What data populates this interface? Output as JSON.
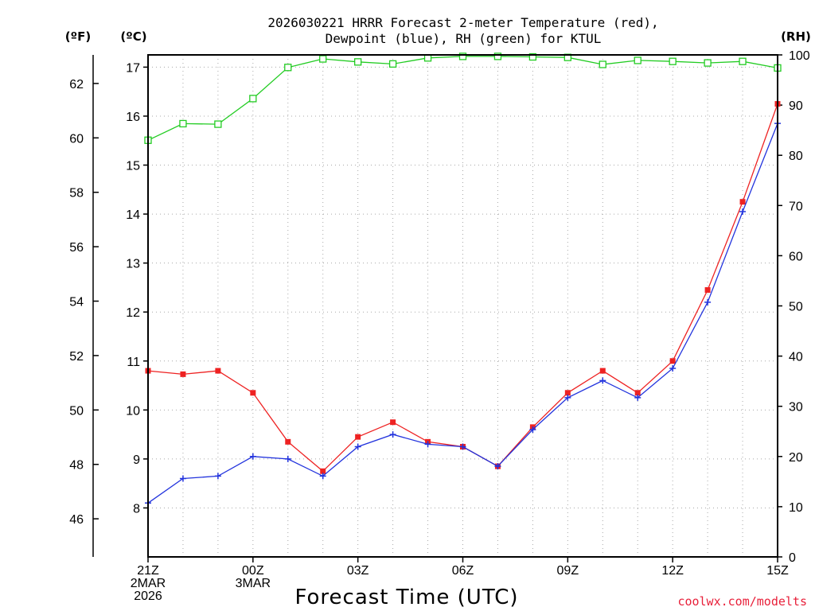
{
  "chart_data": {
    "type": "line",
    "title_line1": "2026030221 HRRR Forecast 2-meter Temperature (red),",
    "title_line2": "Dewpoint (blue), RH (green) for KTUL",
    "xlabel": "Forecast Time (UTC)",
    "credit": "coolwx.com/modelts",
    "unit_labels": {
      "fahrenheit": "(ºF)",
      "celsius": "(ºC)",
      "rh": "(RH)"
    },
    "x_hours": [
      0,
      1,
      2,
      3,
      4,
      5,
      6,
      7,
      8,
      9,
      10,
      11,
      12,
      13,
      14,
      15,
      16,
      17,
      18
    ],
    "x_ticks": [
      {
        "hour": 0,
        "lines": [
          "21Z",
          "2MAR",
          "2026"
        ]
      },
      {
        "hour": 3,
        "lines": [
          "00Z",
          "3MAR"
        ]
      },
      {
        "hour": 6,
        "lines": [
          "03Z"
        ]
      },
      {
        "hour": 9,
        "lines": [
          "06Z"
        ]
      },
      {
        "hour": 12,
        "lines": [
          "09Z"
        ]
      },
      {
        "hour": 15,
        "lines": [
          "12Z"
        ]
      },
      {
        "hour": 18,
        "lines": [
          "15Z"
        ]
      }
    ],
    "celsius_axis": {
      "range": [
        7.0,
        17.25
      ],
      "ticks": [
        "8",
        "9",
        "10",
        "11",
        "12",
        "13",
        "14",
        "15",
        "16",
        "17"
      ]
    },
    "fahrenheit_axis": {
      "ticks": [
        "46",
        "48",
        "50",
        "52",
        "54",
        "56",
        "58",
        "60",
        "62"
      ]
    },
    "rh_axis": {
      "range": [
        0,
        100
      ],
      "ticks": [
        "0",
        "10",
        "20",
        "30",
        "40",
        "50",
        "60",
        "70",
        "80",
        "90",
        "100"
      ]
    },
    "series": [
      {
        "name": "2-meter Temperature",
        "color": "#ee2222",
        "axis": "celsius",
        "marker": "filled-square",
        "values": [
          10.8,
          10.73,
          10.8,
          10.35,
          9.35,
          8.75,
          9.45,
          9.75,
          9.35,
          9.25,
          8.85,
          9.65,
          10.35,
          10.8,
          10.35,
          11.0,
          12.45,
          14.25,
          16.25
        ]
      },
      {
        "name": "Dewpoint",
        "color": "#2233dd",
        "axis": "celsius",
        "marker": "plus",
        "values": [
          8.1,
          8.6,
          8.65,
          9.05,
          9.0,
          8.65,
          9.25,
          9.5,
          9.3,
          9.25,
          8.85,
          9.6,
          10.25,
          10.6,
          10.25,
          10.85,
          12.2,
          14.05,
          15.85
        ]
      },
      {
        "name": "RH",
        "color": "#22cc22",
        "axis": "rh",
        "marker": "open-square",
        "values": [
          83,
          86.3,
          86.2,
          91.3,
          97.5,
          99.2,
          98.6,
          98.2,
          99.4,
          99.7,
          99.7,
          99.6,
          99.5,
          98.1,
          98.9,
          98.7,
          98.4,
          98.7,
          97.4
        ]
      }
    ]
  }
}
